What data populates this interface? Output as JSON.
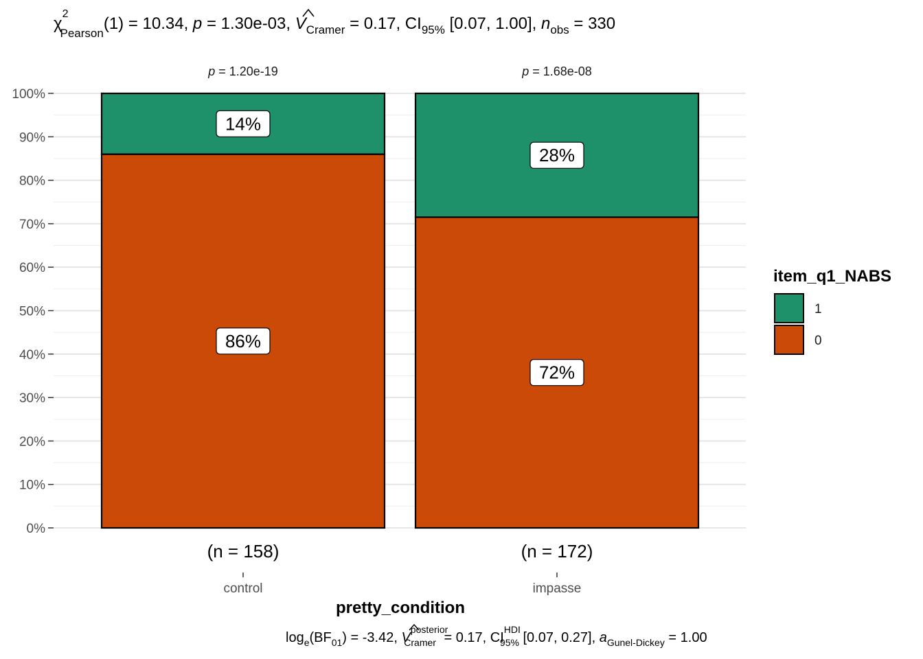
{
  "chart_data": {
    "type": "bar",
    "stacked": "percent",
    "title": {
      "chi": "χ",
      "chi_sup": "2",
      "chi_sub": "Pearson",
      "part1": "(1) = 10.34, ",
      "p_sym": "p",
      "part2": " = 1.30e-03, ",
      "v_sym": "V",
      "v_hat": "^",
      "v_sub": "Cramer",
      "part3": " = 0.17, CI",
      "ci_sub": "95%",
      "part4": " [0.07, 1.00], ",
      "n_sym": "n",
      "n_sub": "obs",
      "part5": " = 330"
    },
    "caption": {
      "log": "log",
      "log_sub": "e",
      "bf_open": "(BF",
      "bf_sub": "01",
      "bf_rest": ") = -3.42, ",
      "v_sym": "V",
      "v_sup": "posterior",
      "v_sub": "Cramer",
      "part2": " = 0.17, CI",
      "ci_sup": "HDI",
      "ci_sub": "95%",
      "part3": " [0.07, 0.27], ",
      "a_sym": "a",
      "a_sub": "Gunel-Dickey",
      "part4": " = 1.00"
    },
    "xlabel": "pretty_condition",
    "ylabel": "",
    "ylim": [
      0,
      100
    ],
    "yticks": [
      "0%",
      "10%",
      "20%",
      "30%",
      "40%",
      "50%",
      "60%",
      "70%",
      "80%",
      "90%",
      "100%"
    ],
    "grid": true,
    "categories": [
      "control",
      "impasse"
    ],
    "strip_labels": [
      {
        "p": "p",
        "rest": " = 1.20e-19"
      },
      {
        "p": "p",
        "rest": " = 1.68e-08"
      }
    ],
    "n_labels": [
      "(n = 158)",
      "(n = 172)"
    ],
    "series": [
      {
        "name": "0",
        "values": [
          86,
          71.5
        ],
        "labels": [
          "86%",
          "72%"
        ],
        "color": "#CC4A08"
      },
      {
        "name": "1",
        "values": [
          14,
          28.5
        ],
        "labels": [
          "14%",
          "28%"
        ],
        "color": "#1E916B"
      }
    ],
    "legend": {
      "title": "item_q1_NABS",
      "position": "right",
      "entries": [
        {
          "label": "1",
          "color": "#1E916B"
        },
        {
          "label": "0",
          "color": "#CC4A08"
        }
      ]
    }
  }
}
